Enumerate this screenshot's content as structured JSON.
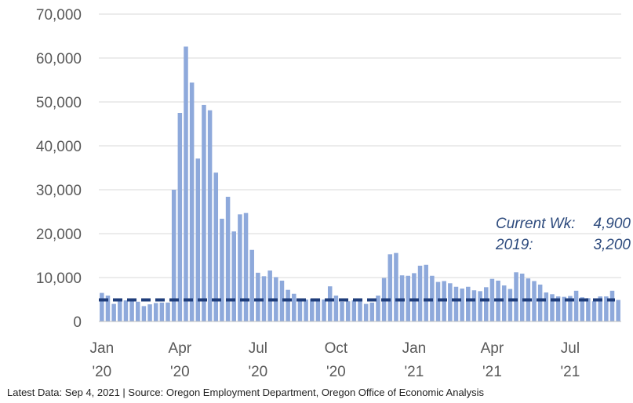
{
  "chart_data": {
    "type": "bar",
    "title": "",
    "xlabel": "",
    "ylabel": "",
    "ylim": [
      0,
      70000
    ],
    "yticks": [
      0,
      10000,
      20000,
      30000,
      40000,
      50000,
      60000,
      70000
    ],
    "ytick_labels": [
      "0",
      "10,000",
      "20,000",
      "30,000",
      "40,000",
      "50,000",
      "60,000",
      "70,000"
    ],
    "grid": true,
    "x_tick_labels": [
      {
        "week_index": 0,
        "month": "Jan",
        "year": "'20"
      },
      {
        "week_index": 13,
        "month": "Apr",
        "year": "'20"
      },
      {
        "week_index": 26,
        "month": "Jul",
        "year": "'20"
      },
      {
        "week_index": 39,
        "month": "Oct",
        "year": "'20"
      },
      {
        "week_index": 52,
        "month": "Jan",
        "year": "'21"
      },
      {
        "week_index": 65,
        "month": "Apr",
        "year": "'21"
      },
      {
        "week_index": 78,
        "month": "Jul",
        "year": "'21"
      }
    ],
    "series": [
      {
        "type": "bar",
        "values": [
          6500,
          5900,
          4000,
          4600,
          4800,
          4600,
          4500,
          3500,
          3900,
          4200,
          4300,
          4300,
          30000,
          47500,
          62600,
          54400,
          37100,
          49300,
          48100,
          33900,
          23400,
          28400,
          20500,
          24400,
          24700,
          16300,
          11100,
          10300,
          11600,
          10100,
          9300,
          7200,
          6300,
          5200,
          5000,
          5200,
          5200,
          5000,
          8000,
          5900,
          4500,
          4600,
          4800,
          4700,
          4000,
          4300,
          5900,
          9900,
          15300,
          15600,
          10500,
          10400,
          11000,
          12700,
          12900,
          10400,
          9000,
          9200,
          8700,
          7900,
          7500,
          7900,
          7100,
          6900,
          7800,
          9700,
          9300,
          8200,
          7400,
          11200,
          10900,
          9800,
          9200,
          8400,
          6600,
          6200,
          5700,
          5600,
          5800,
          7000,
          5500,
          5300,
          4600,
          5700,
          5700,
          7000,
          4900
        ]
      },
      {
        "type": "line",
        "values": [
          4900
        ]
      }
    ],
    "colors": {
      "bars": "#8EA9DB",
      "reference_line": "#1F3D7A",
      "grid": "#D9D9D9"
    },
    "annotation": {
      "line1_label": "Current Wk:",
      "line1_value": "4,900",
      "line2_label": "2019:",
      "line2_value": "3,200"
    }
  },
  "footnote": "Latest Data: Sep 4, 2021  |  Source: Oregon Employment Department, Oregon Office of Economic Analysis"
}
